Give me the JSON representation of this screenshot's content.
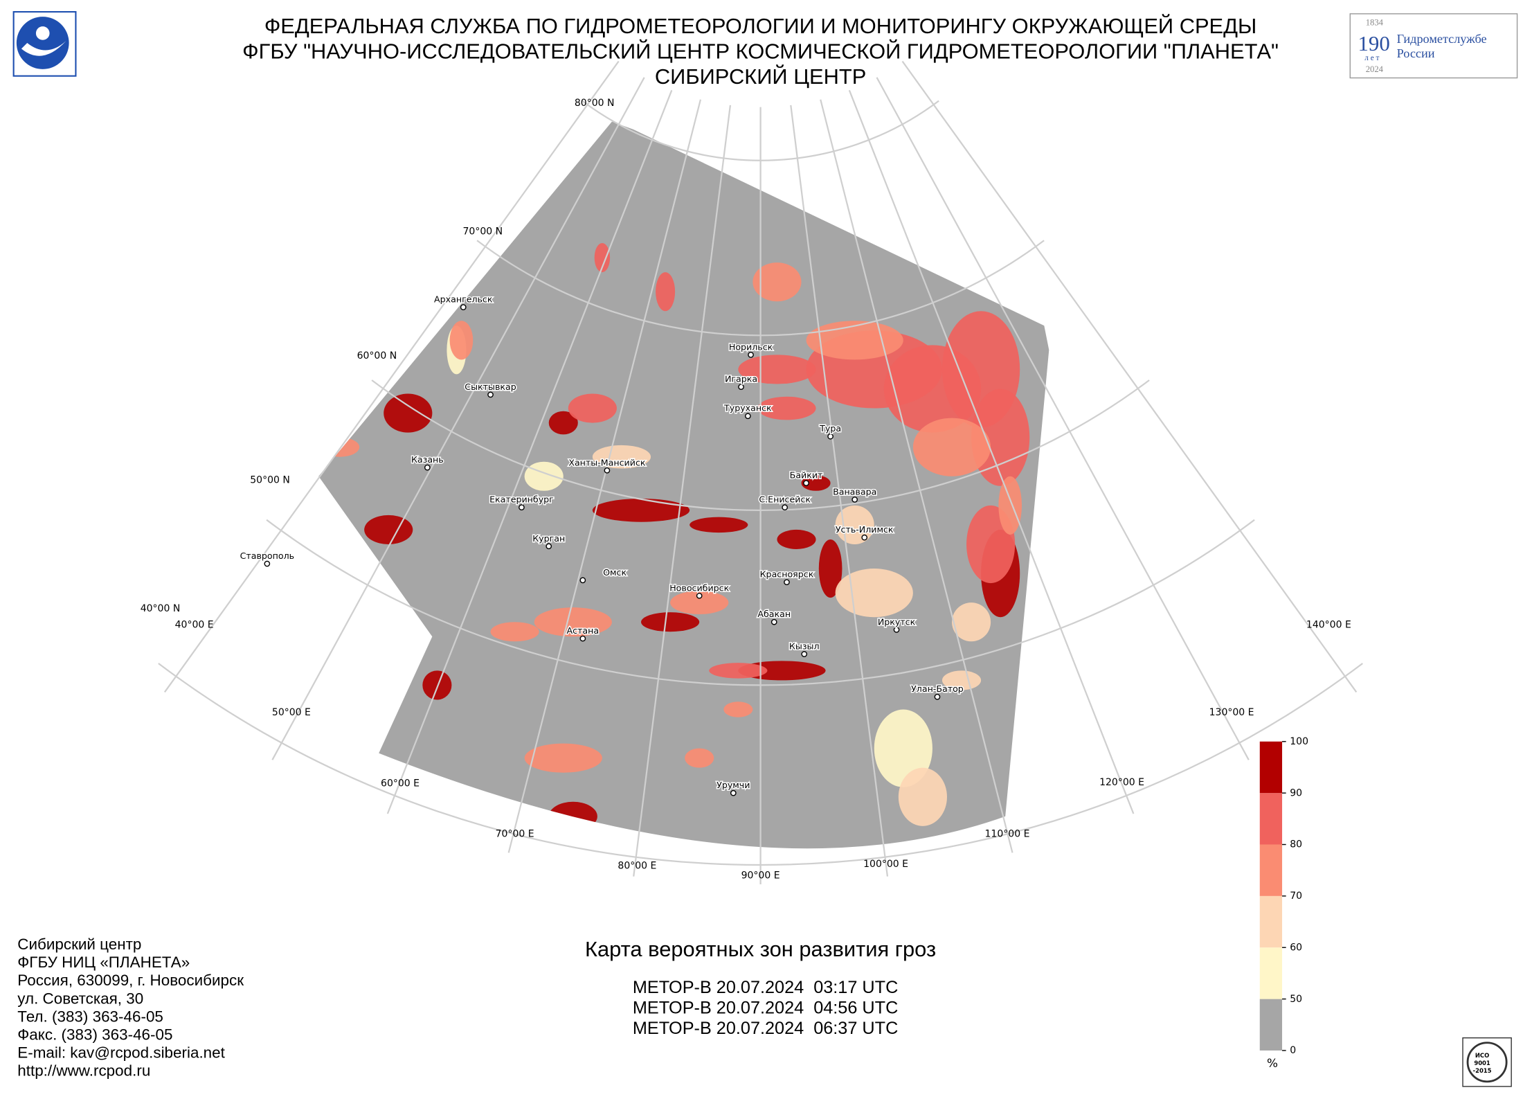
{
  "header": {
    "lines": [
      "ФЕДЕРАЛЬНАЯ СЛУЖБА ПО ГИДРОМЕТЕОРОЛОГИИ И МОНИТОРИНГУ ОКРУЖАЮЩЕЙ СРЕДЫ",
      "ФГБУ \"НАУЧНО-ИССЛЕДОВАТЕЛЬСКИЙ ЦЕНТР КОСМИЧЕСКОЙ ГИДРОМЕТЕОРОЛОГИИ \"ПЛАНЕТА\"",
      "СИБИРСКИЙ ЦЕНТР"
    ]
  },
  "anniversary_logo": {
    "start_year": "1834",
    "number": "190",
    "unit": "лет",
    "text_lines": [
      "Гидрометслужбе",
      "России"
    ],
    "end_year": "2024"
  },
  "map": {
    "latitude_labels": [
      "80°00 N",
      "70°00 N",
      "60°00 N",
      "50°00 N",
      "40°00 N"
    ],
    "longitude_labels": [
      "40°00 E",
      "50°00 E",
      "60°00 E",
      "70°00 E",
      "80°00 E",
      "90°00 E",
      "100°00 E",
      "110°00 E",
      "120°00 E",
      "130°00 E",
      "140°00 E"
    ],
    "cities": [
      "Архангельск",
      "Сыктывкар",
      "Казань",
      "Екатеринбург",
      "Ханты-Мансийск",
      "Курган",
      "Ставрополь",
      "Омск",
      "Новосибирск",
      "Астана",
      "Норильск",
      "Игарка",
      "Туруханск",
      "Тура",
      "Байкит",
      "Ванавара",
      "С.Енисейск",
      "Усть-Илимск",
      "Красноярск",
      "Абакан",
      "Иркутск",
      "Кызыл",
      "Улан-Батор",
      "Урумчи"
    ]
  },
  "colorbar": {
    "ticks": [
      0,
      50,
      60,
      70,
      80,
      90,
      100
    ],
    "unit": "%",
    "colors": [
      "#a6a6a6",
      "#fff6c8",
      "#fdd6b4",
      "#fa8c72",
      "#f0625d",
      "#b20000"
    ]
  },
  "product": {
    "title": "Карта вероятных зон развития гроз",
    "passes": [
      "МЕТОР-В 20.07.2024  03:17 UTC",
      "МЕТОР-В 20.07.2024  04:56 UTC",
      "МЕТОР-В 20.07.2024  06:37 UTC"
    ]
  },
  "contacts": {
    "lines": [
      "Сибирский центр",
      "ФГБУ НИЦ «ПЛАНЕТА»",
      "Россия, 630099, г. Новосибирск",
      "ул. Советская, 30",
      "Тел. (383) 363-46-05",
      "Факс. (383) 363-46-05",
      "E-mail: kav@rcpod.siberia.net",
      "http://www.rcpod.ru"
    ]
  },
  "certificate": {
    "lines": [
      "ИСО",
      "9001",
      "-2015"
    ]
  }
}
